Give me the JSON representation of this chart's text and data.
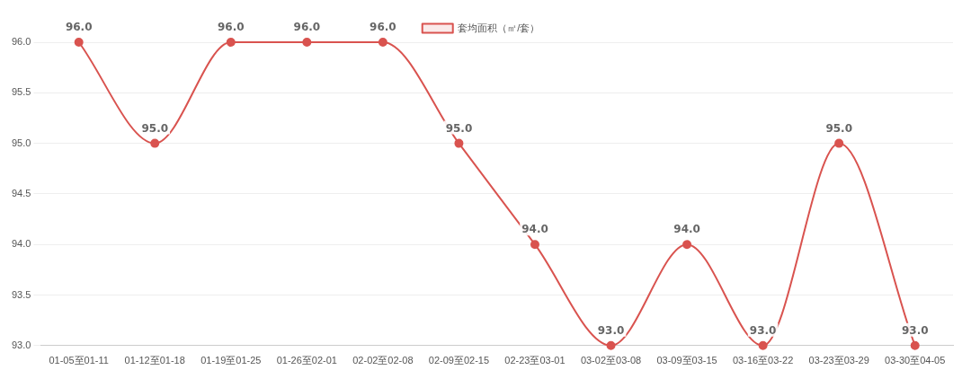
{
  "chart_data": {
    "type": "line",
    "categories": [
      "01-05至01-11",
      "01-12至01-18",
      "01-19至01-25",
      "01-26至02-01",
      "02-02至02-08",
      "02-09至02-15",
      "02-23至03-01",
      "03-02至03-08",
      "03-09至03-15",
      "03-16至03-22",
      "03-23至03-29",
      "03-30至04-05"
    ],
    "series": [
      {
        "name": "套均面积（㎡/套）",
        "color": "#d9534f",
        "values": [
          96,
          95,
          96,
          96,
          96,
          95,
          94,
          93,
          94,
          93,
          95,
          93
        ],
        "value_labels": [
          "96.0",
          "95.0",
          "96.0",
          "96.0",
          "96.0",
          "95.0",
          "94.0",
          "93.0",
          "94.0",
          "93.0",
          "95.0",
          "93.0"
        ]
      }
    ],
    "ylim": [
      93,
      96
    ],
    "yticks": [
      {
        "value": 93,
        "label": "93.0"
      },
      {
        "value": 93.5,
        "label": "93.5"
      },
      {
        "value": 94,
        "label": "94.0"
      },
      {
        "value": 94.5,
        "label": "94.5"
      },
      {
        "value": 95,
        "label": "95.0"
      },
      {
        "value": 95.5,
        "label": "95.5"
      },
      {
        "value": 96,
        "label": "96.0"
      }
    ],
    "grid": "y",
    "legend": "top",
    "marker": "circle",
    "line_style": "solid"
  }
}
